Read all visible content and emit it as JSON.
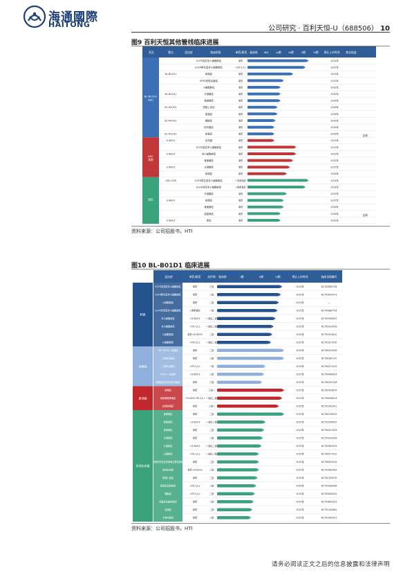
{
  "header": {
    "logo_cn": "海通國際",
    "logo_en": "HAITONG",
    "report_label": "公司研究 · 百利天恒-U（688506）",
    "page_number": "10"
  },
  "figure9": {
    "title": "图9  百利天恒其他管线临床进展",
    "source": "资料来源：公司招股书，HTI",
    "columns": [
      "药品",
      "靶点",
      "适应症",
      "临床阶段",
      "单药/联用",
      "临床前",
      "IND",
      "Ia期",
      "Ib期",
      "II期",
      "III期",
      "预计上市时间",
      "商业权益"
    ],
    "groups": [
      {
        "label": "BL-B01D1\nADC",
        "color": "#3b6fb6",
        "rows": 12
      },
      {
        "label": "ADC\n其他",
        "color": "#c0373a",
        "rows": 6
      },
      {
        "label": "双抗",
        "color": "#3aa27c",
        "rows": 7
      }
    ],
    "rows": [
      {
        "drug": "",
        "indication": "EGFR突变非小细胞肺癌",
        "combo": "单药",
        "fill": 0.95,
        "year": "2024年"
      },
      {
        "drug": "",
        "indication": "EGFR野生型非小细胞肺癌",
        "combo": "+PD-1/L1",
        "fill": 0.9,
        "year": "2025年"
      },
      {
        "drug": "BL-B01D1",
        "indication": "鼻咽癌",
        "combo": "单药",
        "fill": 0.7,
        "year": "2025年"
      },
      {
        "drug": "",
        "indication": "HER2阳性乳腺癌",
        "combo": "单药",
        "fill": 0.55,
        "year": "2025年"
      },
      {
        "drug": "",
        "indication": "小细胞肺癌",
        "combo": "单药",
        "fill": 0.5,
        "year": "2026年"
      },
      {
        "drug": "BL-B01D1",
        "indication": "头颈鳞癌",
        "combo": "单药",
        "fill": 0.5,
        "year": "2026年"
      },
      {
        "drug": "",
        "indication": "食管鳞癌",
        "combo": "单药",
        "fill": 0.5,
        "year": "2026年"
      },
      {
        "drug": "BL-M07D1",
        "indication": "尿路上皮癌",
        "combo": "单药",
        "fill": 0.45,
        "year": "2026年"
      },
      {
        "drug": "",
        "indication": "胆道癌",
        "combo": "单药",
        "fill": 0.45,
        "year": "2026年"
      },
      {
        "drug": "BL-M07D1",
        "indication": "胰腺癌",
        "combo": "单药",
        "fill": 0.42,
        "year": "2026年"
      },
      {
        "drug": "",
        "indication": "前列腺癌",
        "combo": "单药",
        "fill": 0.4,
        "year": "2026年"
      },
      {
        "drug": "BL-M11D1",
        "indication": "卵巢癌",
        "combo": "单药",
        "fill": 0.4,
        "year": "2026年"
      },
      {
        "drug": "SI-B001",
        "indication": "实体瘤",
        "combo": "单药",
        "fill": 0.4,
        "year": "2025年"
      },
      {
        "drug": "",
        "indication": "EGFR突变非小细胞肺癌",
        "combo": "单药",
        "fill": 0.75,
        "year": "2025年"
      },
      {
        "drug": "SI-B003",
        "indication": "非小细胞肺癌",
        "combo": "单药",
        "fill": 0.75,
        "year": "2025年"
      },
      {
        "drug": "",
        "indication": "食管鳞癌",
        "combo": "单药",
        "fill": 0.7,
        "year": "2025年"
      },
      {
        "drug": "SI-B003",
        "indication": "头颈鳞癌",
        "combo": "单药",
        "fill": 0.65,
        "year": "2025年"
      },
      {
        "drug": "",
        "indication": "鼻咽癌",
        "combo": "单药",
        "fill": 0.6,
        "year": "2026年"
      },
      {
        "drug": "GNC-038",
        "indication": "EGFR野生型非小细胞肺癌",
        "combo": "+多西他赛",
        "fill": 0.95,
        "year": "2024年"
      },
      {
        "drug": "",
        "indication": "EGFR突变非小细胞肺癌",
        "combo": "+奥希替尼",
        "fill": 0.9,
        "year": "2024年"
      },
      {
        "drug": "",
        "indication": "头颈鳞癌",
        "combo": "单药",
        "fill": 0.6,
        "year": "2025年"
      },
      {
        "drug": "SI-B001",
        "indication": "鼻咽癌",
        "combo": "单药",
        "fill": 0.55,
        "year": "2025年"
      },
      {
        "drug": "",
        "indication": "食管鳞癌",
        "combo": "单药",
        "fill": 0.55,
        "year": "2026年"
      },
      {
        "drug": "",
        "indication": "结直肠癌",
        "combo": "单药",
        "fill": 0.5,
        "year": "2026年"
      },
      {
        "drug": "SI-B003",
        "indication": "胃癌",
        "combo": "单药",
        "fill": 0.5,
        "year": "2026年"
      }
    ],
    "rights": "全球"
  },
  "figure10": {
    "title": "图10 BL-B01D1 临床进展",
    "source": "资料来源：公司招股书，HTI",
    "columns": [
      "适应症",
      "单药/联用",
      "治疗线",
      "临床前",
      "I期",
      "II期",
      "III期",
      "预计上市时间",
      "临床试验编号"
    ],
    "groups": [
      {
        "label": "肺癌",
        "color": "#24528e",
        "rows": 8
      },
      {
        "label": "乳腺癌",
        "color": "#8fb0dc",
        "rows": 5
      },
      {
        "label": "鼻咽癌",
        "color": "#c1272d",
        "rows": 3
      },
      {
        "label": "其他实体瘤",
        "color": "#3aa27c",
        "rows": 14
      }
    ],
    "rows": [
      {
        "ind": "EGFR突变型非小细胞肺癌",
        "combo": "单药",
        "line": "三线",
        "fill": 0.95,
        "year": "2024年",
        "nct": "NCT05880706"
      },
      {
        "ind": "EGFR野生型非小细胞肺癌",
        "combo": "单药",
        "line": "二线",
        "fill": 0.93,
        "year": "2024年",
        "nct": "NCT05894473"
      },
      {
        "ind": "小细胞肺癌",
        "combo": "单药",
        "line": "二线",
        "fill": 0.9,
        "year": "2024年",
        "nct": "—"
      },
      {
        "ind": "EGFR突变型非小细胞肺癌",
        "combo": "+奥希替尼",
        "line": "一线",
        "fill": 0.88,
        "year": "2025年",
        "nct": "NCT05880706"
      },
      {
        "ind": "非小细胞肺癌",
        "combo": "+SI-B003",
        "line": "一线后二线",
        "fill": 0.85,
        "year": "2025年",
        "nct": "NCT05956587"
      },
      {
        "ind": "非小细胞肺癌",
        "combo": "+PD-1/L1",
        "line": "一线后二线",
        "fill": 0.82,
        "year": "2025年",
        "nct": "NCT05924308"
      },
      {
        "ind": "小细胞肺癌",
        "combo": "单药+SI-B003",
        "line": "二线",
        "fill": 0.8,
        "year": "2025年",
        "nct": "NCT05924841"
      },
      {
        "ind": "小细胞肺癌",
        "combo": "+PD-1/L1",
        "line": "一线后二线",
        "fill": 0.78,
        "year": "2025年",
        "nct": "NCT05927090"
      },
      {
        "ind": "HR+/HER2- 乳腺癌",
        "combo": "单药",
        "line": "二线",
        "fill": 0.98,
        "year": "2025年",
        "nct": "NCT06343948"
      },
      {
        "ind": "三阴性乳腺癌",
        "combo": "单药",
        "line": "二线",
        "fill": 0.98,
        "year": "2025年",
        "nct": "NCT06382142"
      },
      {
        "ind": "三阴性乳腺癌",
        "combo": "+PD-1/L1",
        "line": "一线",
        "fill": 0.7,
        "year": "2025年",
        "nct": "NCT06471205"
      },
      {
        "ind": "HER2+ 乳腺癌",
        "combo": "+SI-B003",
        "line": "二线",
        "fill": 0.68,
        "year": "2025年",
        "nct": "NCT06466004"
      },
      {
        "ind": "晚期激素受体阳性乳腺癌",
        "combo": "单药",
        "line": "三线",
        "fill": 0.65,
        "year": "2025年",
        "nct": "NCT06393348"
      },
      {
        "ind": "鼻咽癌",
        "combo": "单药",
        "line": "三线+",
        "fill": 0.98,
        "year": "2025年",
        "nct": "NCT06309674"
      },
      {
        "ind": "局部晚期鼻咽癌",
        "combo": "+SI-B003 PD-1/L1",
        "line": "一线后二线",
        "fill": 0.95,
        "year": "2025年",
        "nct": "NCT06008054"
      },
      {
        "ind": "转移鼻咽癌",
        "combo": "单药",
        "line": "二线+",
        "fill": 0.9,
        "year": "2025年",
        "nct": "NCT05262401"
      },
      {
        "ind": "食管鳞癌",
        "combo": "单药",
        "line": "二线",
        "fill": 0.98,
        "year": "2025年",
        "nct": "NCT06118333"
      },
      {
        "ind": "食管鳞癌",
        "combo": "+SI-B003",
        "line": "一线后二线",
        "fill": 0.7,
        "year": "2025年",
        "nct": "NCT05956587"
      },
      {
        "ind": "食管鳞癌",
        "combo": "单药",
        "line": "二线",
        "fill": 0.68,
        "year": "2025年",
        "nct": "NCT06457009"
      },
      {
        "ind": "头颈鳞癌",
        "combo": "单药",
        "line": "二线",
        "fill": 0.66,
        "year": "2025年",
        "nct": "NCT05924308"
      },
      {
        "ind": "头颈鳞癌",
        "combo": "+SI-B003",
        "line": "一线后二线",
        "fill": 0.64,
        "year": "2025年",
        "nct": "NCT05983432"
      },
      {
        "ind": "头颈鳞癌",
        "combo": "+PD-1/L1",
        "line": "一线后二线",
        "fill": 0.6,
        "year": "2025年",
        "nct": "NCT06477432"
      },
      {
        "ind": "转移性胃癌及胃食管交界处腺癌",
        "combo": "单药",
        "line": "二线",
        "fill": 0.6,
        "year": "2025年",
        "nct": "NCT06003018"
      },
      {
        "ind": "其他实体瘤",
        "combo": "单药+SI-B003",
        "line": "二线",
        "fill": 0.6,
        "year": "2025年",
        "nct": "NCT05983483"
      },
      {
        "ind": "尿路上皮癌",
        "combo": "单药",
        "line": "二线",
        "fill": 0.58,
        "year": "2025年",
        "nct": "NCT05785039"
      },
      {
        "ind": "胆道癌及胆管癌",
        "combo": "+PD-1/L1",
        "line": "二线",
        "fill": 0.56,
        "year": "2025年",
        "nct": "NCT05908286"
      },
      {
        "ind": "胰腺癌",
        "combo": "+PD-1/L1",
        "line": "二线",
        "fill": 0.54,
        "year": "2025年",
        "nct": "NCT05846425"
      },
      {
        "ind": "卵巢癌及输卵管癌",
        "combo": "单药",
        "line": "二线",
        "fill": 0.52,
        "year": "2025年",
        "nct": "NCT05861425"
      },
      {
        "ind": "宫颈癌",
        "combo": "单药",
        "line": "二线",
        "fill": 0.5,
        "year": "2025年",
        "nct": "NCT05194982"
      },
      {
        "ind": "子宫内膜癌",
        "combo": "单药",
        "line": "二线",
        "fill": 0.48,
        "year": "2025年",
        "nct": "NCT05983423"
      }
    ]
  },
  "footer": "请务必阅读正文之后的信息披露和法律声明"
}
